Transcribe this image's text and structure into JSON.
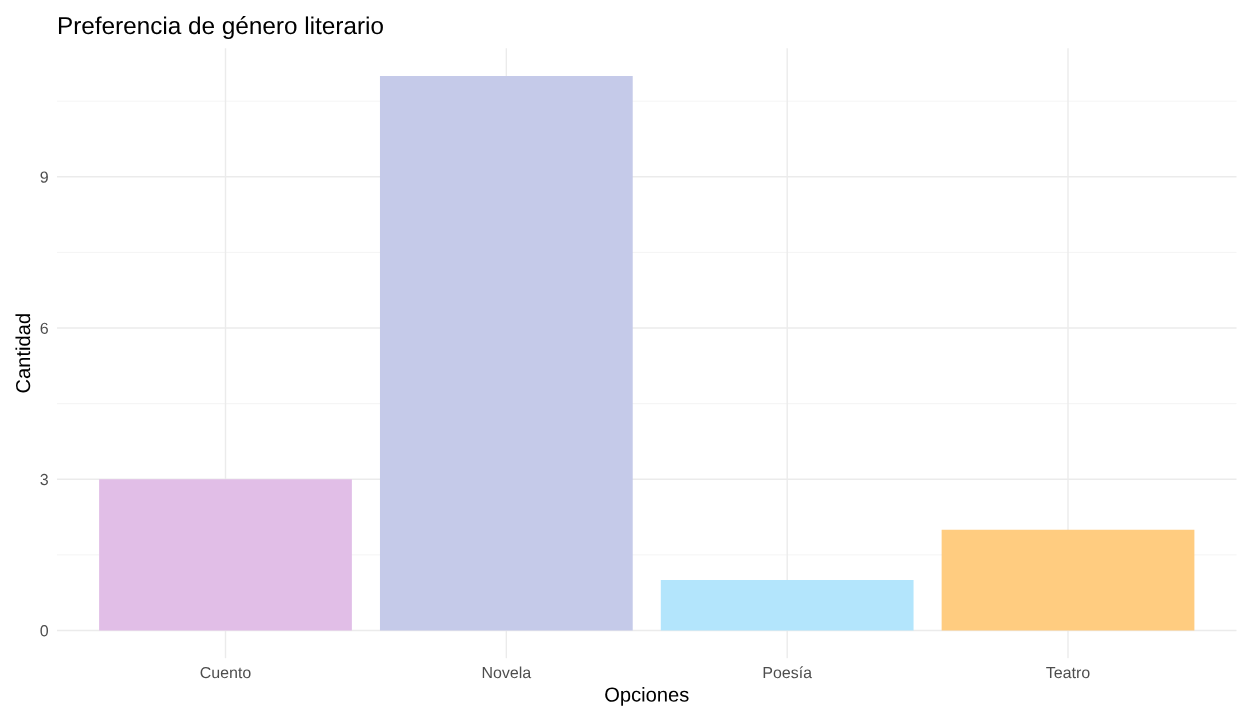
{
  "chart_data": {
    "type": "bar",
    "title": "Preferencia de género literario",
    "xlabel": "Opciones",
    "ylabel": "Cantidad",
    "categories": [
      "Cuento",
      "Novela",
      "Poesía",
      "Teatro"
    ],
    "values": [
      3,
      11,
      1,
      2
    ],
    "colors": [
      "#e1bee7",
      "#c5cae9",
      "#b3e5fc",
      "#ffcc80"
    ],
    "ylim": [
      -0.55,
      11.55
    ],
    "yticks": [
      0,
      3,
      6,
      9
    ],
    "grid": true,
    "legend": false
  }
}
